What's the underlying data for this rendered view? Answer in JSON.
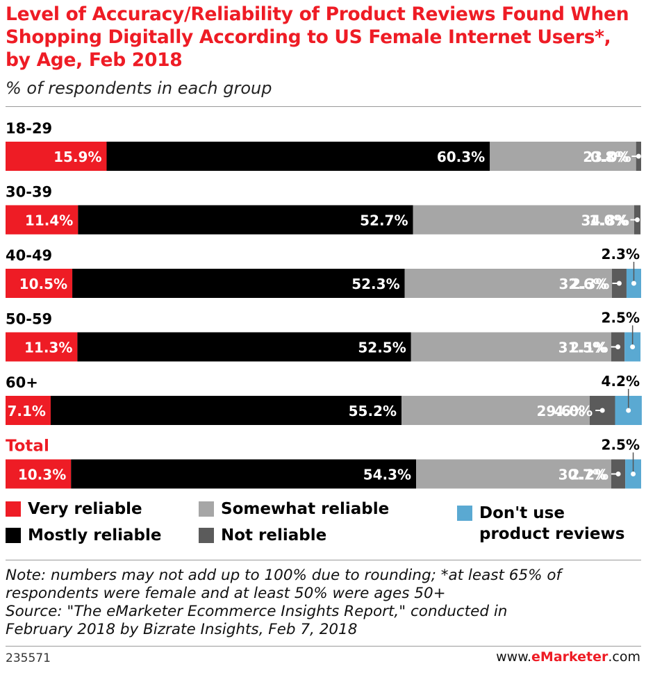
{
  "header": {
    "title": "Level of Accuracy/Reliability of Product Reviews Found When Shopping Digitally According to US Female Internet Users*, by Age, Feb 2018",
    "subtitle": "% of respondents in each group"
  },
  "colors": {
    "title": "#ee1c25",
    "very_reliable": "#ee1c25",
    "mostly_reliable": "#000000",
    "somewhat_reliable": "#a6a6a6",
    "not_reliable": "#5b5b5b",
    "dont_use": "#5aa9d2"
  },
  "chart_data": {
    "type": "bar",
    "orientation": "horizontal",
    "stacked": true,
    "categories": [
      "18-29",
      "30-39",
      "40-49",
      "50-59",
      "60+",
      "Total"
    ],
    "highlight_category": "Total",
    "series": [
      {
        "name": "Very reliable",
        "color": "#ee1c25",
        "values": [
          15.9,
          11.4,
          10.5,
          11.3,
          7.1,
          10.3
        ]
      },
      {
        "name": "Mostly reliable",
        "color": "#000000",
        "values": [
          60.3,
          52.7,
          52.3,
          52.5,
          55.2,
          54.3
        ]
      },
      {
        "name": "Somewhat reliable",
        "color": "#a6a6a6",
        "values": [
          23.0,
          34.8,
          32.6,
          31.5,
          29.6,
          30.7
        ]
      },
      {
        "name": "Not reliable",
        "color": "#5b5b5b",
        "values": [
          0.8,
          1.0,
          2.3,
          2.1,
          4.0,
          2.2
        ]
      },
      {
        "name": "Don't use product reviews",
        "color": "#5aa9d2",
        "values": [
          0.0,
          0.0,
          2.3,
          2.5,
          4.2,
          2.5
        ]
      }
    ],
    "data_labels": [
      [
        "15.9%",
        "60.3%",
        "23.0%",
        "0.8%",
        ""
      ],
      [
        "11.4%",
        "52.7%",
        "34.8%",
        "1.0%",
        ""
      ],
      [
        "10.5%",
        "52.3%",
        "32.6%",
        "2.3%",
        "2.3%"
      ],
      [
        "11.3%",
        "52.5%",
        "31.5%",
        "2.1%",
        "2.5%"
      ],
      [
        "7.1%",
        "55.2%",
        "29.6%",
        "4.0%",
        "4.2%"
      ],
      [
        "10.3%",
        "54.3%",
        "30.7%",
        "2.2%",
        "2.5%"
      ]
    ],
    "xlim": [
      0,
      100
    ],
    "legend_position": "bottom"
  },
  "legend": {
    "very_reliable": "Very reliable",
    "mostly_reliable": "Mostly reliable",
    "somewhat_reliable": "Somewhat reliable",
    "not_reliable": "Not reliable",
    "dont_use_line1": "Don't use",
    "dont_use_line2": "product reviews"
  },
  "note": {
    "line1": "Note: numbers may not add up to 100% due to rounding; *at least 65% of",
    "line2": "respondents were female and at least 50% were ages 50+",
    "line3": "Source: \"The eMarketer Ecommerce Insights Report,\" conducted in",
    "line4": "February 2018 by Bizrate Insights, Feb 7, 2018"
  },
  "footer": {
    "chart_id": "235571",
    "brand_prefix": "www.",
    "brand_bold": "eMarketer",
    "brand_suffix": ".com"
  }
}
